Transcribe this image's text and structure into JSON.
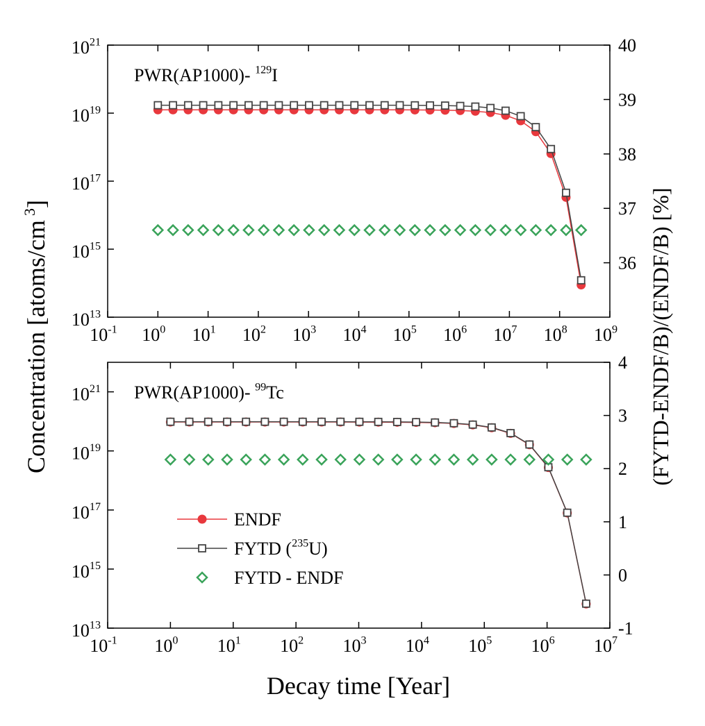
{
  "figure": {
    "ylabel": "Concentration [atoms/cm",
    "ylabel_sup": "3",
    "ylabel_end": "]",
    "y2label": "(FYTD-ENDF/B)/(ENDF/B)  [%]",
    "xlabel": "Decay time [Year]"
  },
  "chart_data": [
    {
      "type": "line",
      "annotation": "PWR(AP1000)- ",
      "annotation_sup": "129",
      "annotation_end": "I",
      "xscale": "log",
      "yscale": "log",
      "xlim": [
        0.1,
        1000000000
      ],
      "xticks": [
        {
          "value": 0.1,
          "label": "10",
          "exp": "-1"
        },
        {
          "value": 1,
          "label": "10",
          "exp": "0"
        },
        {
          "value": 10,
          "label": "10",
          "exp": "1"
        },
        {
          "value": 100,
          "label": "10",
          "exp": "2"
        },
        {
          "value": 1000,
          "label": "10",
          "exp": "3"
        },
        {
          "value": 10000,
          "label": "10",
          "exp": "4"
        },
        {
          "value": 100000,
          "label": "10",
          "exp": "5"
        },
        {
          "value": 1000000,
          "label": "10",
          "exp": "6"
        },
        {
          "value": 10000000,
          "label": "10",
          "exp": "7"
        },
        {
          "value": 100000000,
          "label": "10",
          "exp": "8"
        },
        {
          "value": 1000000000,
          "label": "10",
          "exp": "9"
        }
      ],
      "ylim": [
        10000000000000.0,
        1e+21
      ],
      "yticks": [
        {
          "value": 10000000000000.0,
          "label": "10",
          "exp": "13"
        },
        {
          "value": 1000000000000000.0,
          "label": "10",
          "exp": "15"
        },
        {
          "value": 1e+17,
          "label": "10",
          "exp": "17"
        },
        {
          "value": 1e+19,
          "label": "10",
          "exp": "19"
        },
        {
          "value": 1e+21,
          "label": "10",
          "exp": "21"
        }
      ],
      "y2lim": [
        35,
        40
      ],
      "y2ticks": [
        36,
        37,
        38,
        39,
        40
      ],
      "x": [
        1,
        2,
        4,
        8,
        16,
        32,
        64,
        128,
        256,
        512,
        1024,
        2048,
        4096,
        8192,
        16384,
        32768,
        65536,
        131072,
        262144,
        524288,
        1048576,
        2097152,
        4194304,
        8388608,
        16777216,
        33554432,
        67108864,
        134217728,
        268435456
      ],
      "series": [
        {
          "color": "#e8383d",
          "marker": "circle",
          "line": true,
          "values": [
            1.25e+19,
            1.25e+19,
            1.25e+19,
            1.25e+19,
            1.25e+19,
            1.25e+19,
            1.25e+19,
            1.25e+19,
            1.25e+19,
            1.25e+19,
            1.25e+19,
            1.25e+19,
            1.25e+19,
            1.25e+19,
            1.25e+19,
            1.25e+19,
            1.25e+19,
            1.243e+19,
            1.236e+19,
            1.221e+19,
            1.193e+19,
            1.139e+19,
            1.039e+19,
            8.63e+18,
            5.96e+18,
            2.84e+18,
            6.46e+17,
            3.34e+16,
            89000000000000.0
          ]
        },
        {
          "color": "#444444",
          "marker": "square",
          "line": true,
          "values": [
            1.71e+19,
            1.71e+19,
            1.71e+19,
            1.71e+19,
            1.71e+19,
            1.71e+19,
            1.71e+19,
            1.71e+19,
            1.71e+19,
            1.71e+19,
            1.71e+19,
            1.71e+19,
            1.71e+19,
            1.71e+19,
            1.71e+19,
            1.71e+19,
            1.71e+19,
            1.7e+19,
            1.69e+19,
            1.67e+19,
            1.63e+19,
            1.56e+19,
            1.42e+19,
            1.18e+19,
            8.14e+18,
            3.88e+18,
            8.82e+17,
            4.56e+16,
            122000000000000.0
          ]
        },
        {
          "color": "#3aa35a",
          "marker": "diamond",
          "line": false,
          "axis": "y2",
          "values": [
            36.6,
            36.6,
            36.6,
            36.6,
            36.6,
            36.6,
            36.6,
            36.6,
            36.6,
            36.6,
            36.6,
            36.6,
            36.6,
            36.6,
            36.6,
            36.6,
            36.6,
            36.6,
            36.6,
            36.6,
            36.6,
            36.6,
            36.6,
            36.6,
            36.6,
            36.6,
            36.6,
            36.6,
            36.6
          ]
        }
      ]
    },
    {
      "type": "line",
      "annotation": "PWR(AP1000)- ",
      "annotation_sup": "99",
      "annotation_end": "Tc",
      "xscale": "log",
      "yscale": "log",
      "legend": "center left",
      "xlim": [
        0.1,
        10000000
      ],
      "xticks": [
        {
          "value": 0.1,
          "label": "10",
          "exp": "-1"
        },
        {
          "value": 1,
          "label": "10",
          "exp": "0"
        },
        {
          "value": 10,
          "label": "10",
          "exp": "1"
        },
        {
          "value": 100,
          "label": "10",
          "exp": "2"
        },
        {
          "value": 1000,
          "label": "10",
          "exp": "3"
        },
        {
          "value": 10000,
          "label": "10",
          "exp": "4"
        },
        {
          "value": 100000,
          "label": "10",
          "exp": "5"
        },
        {
          "value": 1000000,
          "label": "10",
          "exp": "6"
        },
        {
          "value": 10000000,
          "label": "10",
          "exp": "7"
        }
      ],
      "ylim": [
        10000000000000.0,
        1e+22
      ],
      "yticks": [
        {
          "value": 10000000000000.0,
          "label": "10",
          "exp": "13"
        },
        {
          "value": 1000000000000000.0,
          "label": "10",
          "exp": "15"
        },
        {
          "value": 1e+17,
          "label": "10",
          "exp": "17"
        },
        {
          "value": 1e+19,
          "label": "10",
          "exp": "19"
        },
        {
          "value": 1e+21,
          "label": "10",
          "exp": "21"
        }
      ],
      "y2lim": [
        -1,
        4
      ],
      "y2ticks": [
        -1,
        0,
        1,
        2,
        3,
        4
      ],
      "x": [
        1,
        2,
        4,
        8,
        16,
        32,
        64,
        128,
        256,
        512,
        1024,
        2048,
        4096,
        8192,
        16384,
        32768,
        65536,
        131072,
        262144,
        524288,
        1048576,
        2097152,
        4194304
      ],
      "series": [
        {
          "name": "ENDF",
          "color": "#e8383d",
          "marker": "circle",
          "line": true,
          "values": [
            9.5e+19,
            9.5e+19,
            9.5e+19,
            9.5e+19,
            9.5e+19,
            9.5e+19,
            9.5e+19,
            9.5e+19,
            9.5e+19,
            9.5e+19,
            9.47e+19,
            9.43e+19,
            9.37e+19,
            9.24e+19,
            8.99e+19,
            8.5e+19,
            7.61e+19,
            6.1e+19,
            3.92e+19,
            1.615e+19,
            2.74e+18,
            7.93e+16,
            66000000000000.0
          ]
        },
        {
          "name": "FYTD (",
          "name_sup": "235",
          "name_end": "U)",
          "color": "#444444",
          "marker": "square",
          "line": true,
          "values": [
            9.71e+19,
            9.71e+19,
            9.71e+19,
            9.71e+19,
            9.71e+19,
            9.71e+19,
            9.71e+19,
            9.71e+19,
            9.71e+19,
            9.71e+19,
            9.68e+19,
            9.63e+19,
            9.57e+19,
            9.44e+19,
            9.19e+19,
            8.68e+19,
            7.78e+19,
            6.23e+19,
            4.01e+19,
            1.65e+19,
            2.8e+18,
            8.1e+16,
            67400000000000.0
          ]
        },
        {
          "name": "FYTD - ENDF",
          "color": "#3aa35a",
          "marker": "diamond",
          "line": false,
          "axis": "y2",
          "values": [
            2.17,
            2.17,
            2.17,
            2.17,
            2.17,
            2.17,
            2.17,
            2.17,
            2.17,
            2.17,
            2.17,
            2.17,
            2.17,
            2.17,
            2.17,
            2.17,
            2.17,
            2.17,
            2.17,
            2.17,
            2.17,
            2.17,
            2.17
          ]
        }
      ]
    }
  ]
}
